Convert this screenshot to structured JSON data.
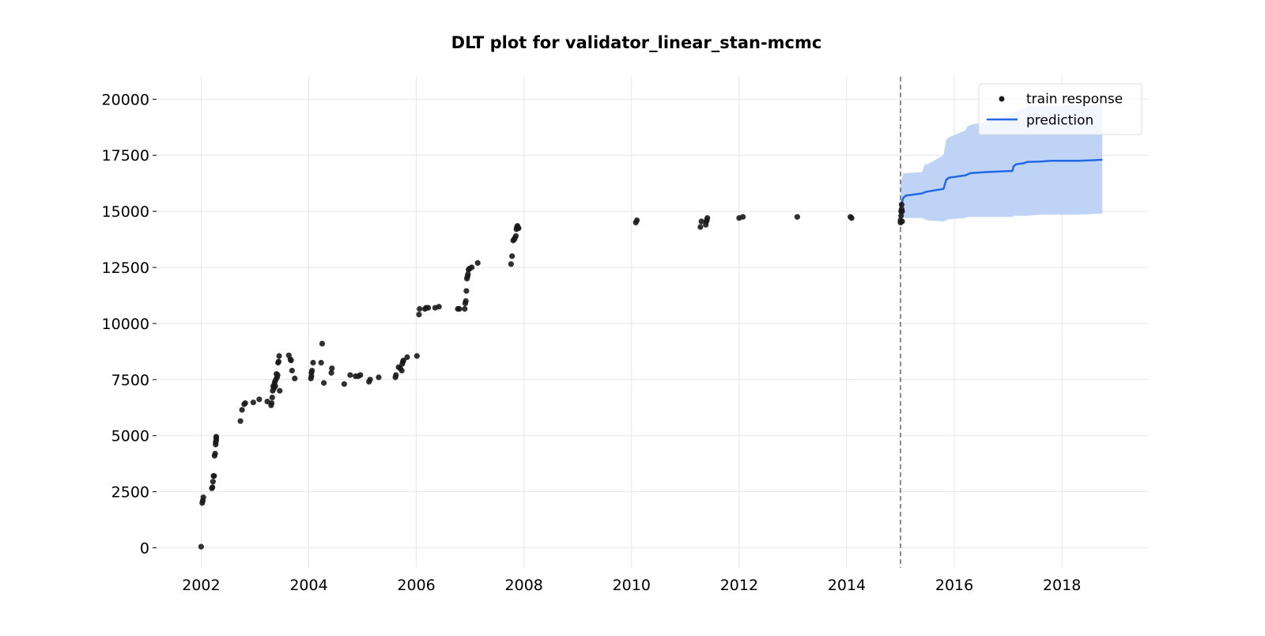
{
  "chart_data": {
    "type": "scatter",
    "title": "DLT plot for validator_linear_stan-mcmc",
    "xlabel": "",
    "ylabel": "",
    "xlim": [
      2001.2,
      2019.6
    ],
    "ylim": [
      -900,
      21000
    ],
    "x_ticks": [
      2002,
      2004,
      2006,
      2008,
      2010,
      2012,
      2014,
      2016,
      2018
    ],
    "x_tick_labels": [
      "2002",
      "2004",
      "2006",
      "2008",
      "2010",
      "2012",
      "2014",
      "2016",
      "2018"
    ],
    "y_ticks": [
      0,
      2500,
      5000,
      7500,
      10000,
      12500,
      15000,
      17500,
      20000
    ],
    "y_tick_labels": [
      "0",
      "2500",
      "5000",
      "7500",
      "10000",
      "12500",
      "15000",
      "17500",
      "20000"
    ],
    "grid": true,
    "legend_position": "top-right",
    "colors": {
      "train_response": "#1a1a1a",
      "prediction": "#2369e6",
      "band": "#bfd3f7",
      "vline": "#666666",
      "grid": "#e6e6e6"
    },
    "cutoff_x": 2015.0,
    "series": [
      {
        "name": "train response",
        "kind": "scatter",
        "x": [
          2002.0,
          2002.02,
          2002.03,
          2002.04,
          2002.2,
          2002.21,
          2002.22,
          2002.23,
          2002.24,
          2002.25,
          2002.26,
          2002.27,
          2002.27,
          2002.28,
          2002.28,
          2002.28,
          2002.73,
          2002.76,
          2002.8,
          2002.82,
          2002.97,
          2003.08,
          2003.23,
          2003.3,
          2003.31,
          2003.32,
          2003.33,
          2003.34,
          2003.35,
          2003.36,
          2003.37,
          2003.38,
          2003.39,
          2003.4,
          2003.41,
          2003.42,
          2003.43,
          2003.44,
          2003.45,
          2003.46,
          2003.63,
          2003.66,
          2003.67,
          2003.69,
          2003.74,
          2004.04,
          2004.05,
          2004.05,
          2004.06,
          2004.08,
          2004.23,
          2004.25,
          2004.28,
          2004.42,
          2004.43,
          2004.66,
          2004.77,
          2004.87,
          2004.92,
          2004.96,
          2005.12,
          2005.14,
          2005.3,
          2005.61,
          2005.62,
          2005.67,
          2005.7,
          2005.73,
          2005.74,
          2005.75,
          2005.76,
          2005.83,
          2006.01,
          2006.05,
          2006.06,
          2006.16,
          2006.18,
          2006.22,
          2006.35,
          2006.42,
          2006.77,
          2006.8,
          2006.9,
          2006.91,
          2006.92,
          2006.93,
          2006.94,
          2006.95,
          2006.96,
          2006.97,
          2006.99,
          2007.03,
          2007.14,
          2007.76,
          2007.78,
          2007.8,
          2007.82,
          2007.83,
          2007.85,
          2007.86,
          2007.87,
          2007.88,
          2007.89,
          2007.9,
          2010.08,
          2010.1,
          2011.28,
          2011.3,
          2011.38,
          2011.39,
          2011.4,
          2011.41,
          2012.0,
          2012.07,
          2013.08,
          2014.07,
          2014.09,
          2015.0,
          2015.0,
          2015.01,
          2015.01,
          2015.02,
          2015.02,
          2015.03,
          2015.03
        ],
        "y": [
          50,
          2000,
          2100,
          2250,
          2650,
          2700,
          2950,
          3200,
          3200,
          4100,
          4200,
          4600,
          4700,
          4800,
          4900,
          4950,
          5650,
          6150,
          6400,
          6450,
          6480,
          6620,
          6520,
          6350,
          6450,
          6700,
          7000,
          7200,
          7100,
          7300,
          7400,
          7200,
          7500,
          7750,
          7600,
          7700,
          8250,
          8300,
          8550,
          7000,
          8580,
          8400,
          8350,
          7900,
          7550,
          7550,
          7650,
          7800,
          7900,
          8250,
          8250,
          9100,
          7350,
          7800,
          8000,
          7300,
          7700,
          7650,
          7650,
          7700,
          7400,
          7500,
          7600,
          7600,
          7700,
          8050,
          8000,
          7900,
          8200,
          8300,
          8350,
          8500,
          8550,
          10400,
          10650,
          10650,
          10700,
          10700,
          10700,
          10750,
          10650,
          10650,
          10650,
          10900,
          11000,
          11450,
          12000,
          12100,
          12200,
          12400,
          12450,
          12500,
          12700,
          12650,
          13000,
          13700,
          13750,
          13800,
          13900,
          14200,
          14300,
          14350,
          14250,
          14250,
          14500,
          14600,
          14300,
          14550,
          14400,
          14550,
          14600,
          14700,
          14700,
          14750,
          14750,
          14750,
          14700,
          14500,
          14600,
          14800,
          15000,
          15100,
          15300,
          15000,
          14550
        ]
      },
      {
        "name": "prediction",
        "kind": "line",
        "x": [
          2015.0,
          2015.05,
          2015.1,
          2015.4,
          2015.45,
          2015.5,
          2015.8,
          2015.85,
          2015.9,
          2016.2,
          2016.25,
          2016.3,
          2016.6,
          2017.08,
          2017.1,
          2017.15,
          2017.3,
          2017.35,
          2017.6,
          2017.8,
          2018.3,
          2018.6,
          2018.75
        ],
        "y": [
          15200,
          15600,
          15700,
          15800,
          15850,
          15880,
          16000,
          16400,
          16500,
          16600,
          16650,
          16700,
          16750,
          16800,
          17000,
          17100,
          17150,
          17200,
          17220,
          17250,
          17250,
          17280,
          17300
        ],
        "band_upper": [
          16200,
          16700,
          16700,
          16750,
          17100,
          17100,
          17500,
          18200,
          18300,
          18600,
          18800,
          18850,
          19000,
          19350,
          19400,
          19500,
          19600,
          19650,
          19700,
          19700,
          19750,
          19750,
          19800
        ],
        "band_lower": [
          14800,
          14750,
          14700,
          14700,
          14650,
          14600,
          14550,
          14600,
          14650,
          14700,
          14750,
          14750,
          14750,
          14750,
          14800,
          14800,
          14800,
          14800,
          14850,
          14850,
          14850,
          14880,
          14900
        ]
      }
    ]
  }
}
